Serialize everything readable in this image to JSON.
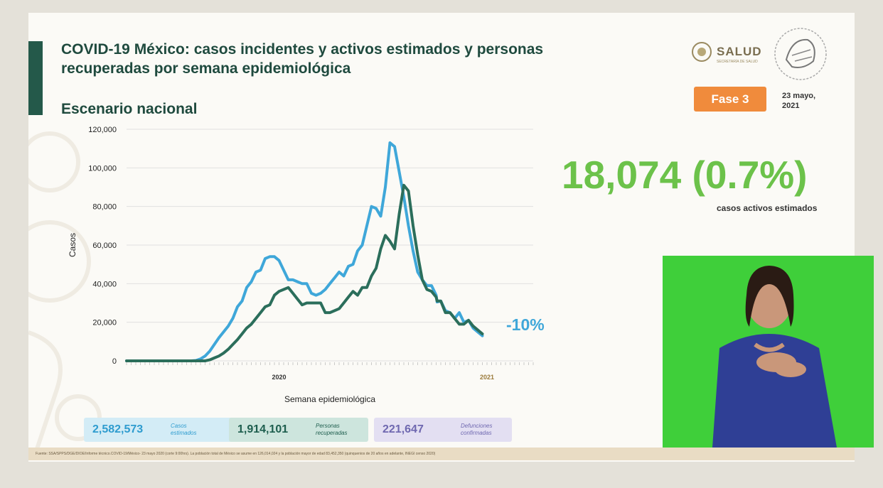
{
  "header": {
    "title": "COVID-19 México: casos incidentes y activos estimados y personas recuperadas por semana epidemiológica",
    "subtitle": "Escenario nacional"
  },
  "brand": {
    "logo_text": "SALUD",
    "logo_sub": "SECRETARÍA DE SALUD",
    "phase_badge": "Fase 3",
    "date": "23 mayo, 2021"
  },
  "highlight": {
    "value": "18,074 (0.7%)",
    "caption": "casos activos estimados",
    "change": "-10%"
  },
  "stats": [
    {
      "value": "2,582,573",
      "label_line1": "Casos",
      "label_line2": "estimados"
    },
    {
      "value": "1,914,101",
      "label_line1": "Personas",
      "label_line2": "recuperadas"
    },
    {
      "value": "221,647",
      "label_line1": "Defunciones",
      "label_line2": "confirmadas"
    }
  ],
  "source": "Fuente: SSA/SPPS/DGE/DIOE/Informe técnico.COVID-19/México- 23 mayo 2020 (corte 9:00hrs). La población total de México se asume en 126,014,024 y la población mayor de edad 83,452,350 (quinquenios de 20 años en adelante, INEGI censo 2020)",
  "colors": {
    "incident": "#3fa7d9",
    "active": "#2b6e5b",
    "title": "#1f4a3e",
    "phase": "#f08b3c",
    "highlight": "#6cc24a",
    "interpreter_bg": "#3fcf3a"
  },
  "chart_data": {
    "type": "line",
    "title": "",
    "xlabel": "Semana epidemiológica",
    "ylabel": "Casos",
    "ylim": [
      0,
      120000
    ],
    "yticks": [
      0,
      20000,
      40000,
      60000,
      80000,
      100000,
      120000
    ],
    "ytick_labels": [
      "0",
      "20,000",
      "40,000",
      "60,000",
      "80,000",
      "100,000",
      "120,000"
    ],
    "year_labels": [
      {
        "label": "2020",
        "week_index": 33
      },
      {
        "label": "2021",
        "week_index": 78
      }
    ],
    "x": [
      0,
      1,
      2,
      3,
      4,
      5,
      6,
      7,
      8,
      9,
      10,
      11,
      12,
      13,
      14,
      15,
      16,
      17,
      18,
      19,
      20,
      21,
      22,
      23,
      24,
      25,
      26,
      27,
      28,
      29,
      30,
      31,
      32,
      33,
      34,
      35,
      36,
      37,
      38,
      39,
      40,
      41,
      42,
      43,
      44,
      45,
      46,
      47,
      48,
      49,
      50,
      51,
      52,
      53,
      54,
      55,
      56,
      57,
      58,
      59,
      60,
      61,
      62,
      63,
      64,
      65,
      66,
      67,
      67.2,
      68,
      69,
      70,
      71,
      72,
      73,
      74,
      75,
      76,
      77,
      78,
      79,
      80,
      81,
      82,
      83,
      84,
      85,
      86,
      87,
      88
    ],
    "series": [
      {
        "values": [
          0,
          0,
          0,
          0,
          0,
          0,
          0,
          0,
          0,
          0,
          0,
          0,
          0,
          0,
          0,
          200,
          1000,
          2500,
          5000,
          8500,
          12000,
          15000,
          18000,
          22000,
          28000,
          31000,
          38000,
          41000,
          46000,
          47000,
          53000,
          54000,
          54000,
          52000,
          47000,
          42000,
          42000,
          41000,
          40000,
          40000,
          35000,
          34000,
          35000,
          37000,
          40000,
          43000,
          46000,
          44000,
          49000,
          50000,
          57000,
          60000,
          70000,
          80000,
          79000,
          75000,
          90000,
          113000,
          111000,
          98000,
          85000,
          70000,
          57000,
          46000,
          42000,
          39000,
          39000,
          34000,
          30500,
          31000,
          26000,
          25000,
          22000,
          25000,
          20000,
          21000,
          17000,
          15000,
          13000,
          0,
          0,
          0,
          0,
          0,
          0,
          0,
          0,
          0,
          0,
          0
        ],
        "note_hidden": false
      },
      {
        "values": [
          0,
          0,
          0,
          0,
          0,
          0,
          0,
          0,
          0,
          0,
          0,
          0,
          0,
          0,
          0,
          0,
          0,
          0,
          500,
          1500,
          2500,
          4000,
          6000,
          8500,
          11000,
          14000,
          17000,
          19000,
          22000,
          25000,
          28000,
          29000,
          34000,
          36000,
          37000,
          38000,
          35000,
          32000,
          29000,
          30000,
          30000,
          30000,
          30000,
          25000,
          25000,
          26000,
          27000,
          30000,
          33000,
          36000,
          34000,
          38000,
          38000,
          44000,
          48000,
          58000,
          65000,
          62000,
          58000,
          76000,
          91000,
          88000,
          70000,
          55000,
          42000,
          37000,
          36000,
          33000,
          31000,
          31000,
          25000,
          25000,
          22000,
          19000,
          19000,
          21000,
          18000,
          16000,
          14000,
          0,
          0,
          0,
          0,
          0,
          0,
          0,
          0,
          0,
          0,
          0
        ]
      }
    ]
  }
}
